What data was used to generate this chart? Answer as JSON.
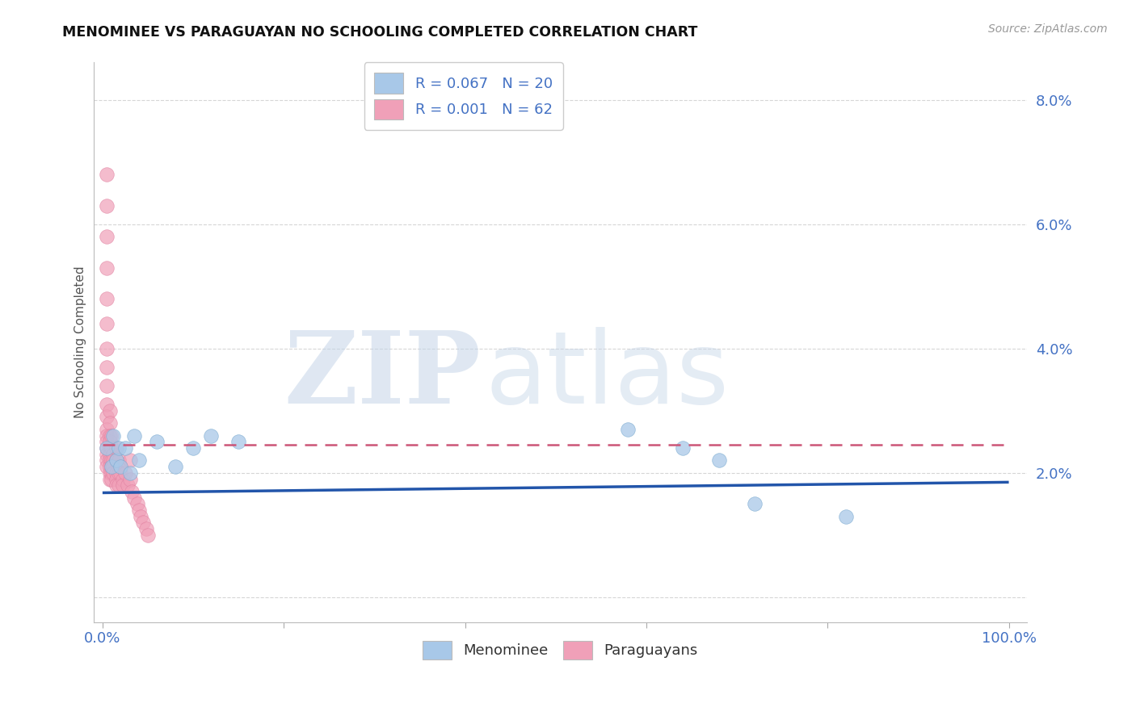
{
  "title": "MENOMINEE VS PARAGUAYAN NO SCHOOLING COMPLETED CORRELATION CHART",
  "source": "Source: ZipAtlas.com",
  "ylabel": "No Schooling Completed",
  "xlim": [
    -0.01,
    1.02
  ],
  "ylim": [
    -0.004,
    0.086
  ],
  "yticks": [
    0.0,
    0.02,
    0.04,
    0.06,
    0.08
  ],
  "ytick_labels": [
    "",
    "2.0%",
    "4.0%",
    "6.0%",
    "8.0%"
  ],
  "xtick_positions": [
    0.0,
    0.2,
    0.4,
    0.6,
    0.8,
    1.0
  ],
  "xtick_labels": [
    "0.0%",
    "",
    "",
    "",
    "",
    "100.0%"
  ],
  "legend_blue_text": "R = 0.067   N = 20",
  "legend_pink_text": "R = 0.001   N = 62",
  "legend_menominee": "Menominee",
  "legend_paraguayans": "Paraguayans",
  "blue_color": "#A8C8E8",
  "pink_color": "#F0A0B8",
  "blue_edge_color": "#7AAAD0",
  "pink_edge_color": "#E080A0",
  "blue_line_color": "#2255AA",
  "pink_line_color": "#CC5577",
  "grid_color": "#CCCCCC",
  "blue_scatter_x": [
    0.005,
    0.01,
    0.012,
    0.015,
    0.018,
    0.02,
    0.025,
    0.03,
    0.035,
    0.04,
    0.06,
    0.08,
    0.1,
    0.12,
    0.15,
    0.58,
    0.64,
    0.68,
    0.72,
    0.82
  ],
  "blue_scatter_y": [
    0.024,
    0.021,
    0.026,
    0.022,
    0.024,
    0.021,
    0.024,
    0.02,
    0.026,
    0.022,
    0.025,
    0.021,
    0.024,
    0.026,
    0.025,
    0.027,
    0.024,
    0.022,
    0.015,
    0.013
  ],
  "pink_scatter_x": [
    0.005,
    0.005,
    0.005,
    0.005,
    0.005,
    0.005,
    0.005,
    0.005,
    0.005,
    0.005,
    0.005,
    0.005,
    0.005,
    0.005,
    0.005,
    0.005,
    0.005,
    0.005,
    0.008,
    0.008,
    0.008,
    0.008,
    0.008,
    0.008,
    0.008,
    0.008,
    0.008,
    0.008,
    0.01,
    0.01,
    0.01,
    0.01,
    0.01,
    0.01,
    0.012,
    0.012,
    0.012,
    0.012,
    0.015,
    0.015,
    0.015,
    0.015,
    0.015,
    0.018,
    0.018,
    0.018,
    0.02,
    0.02,
    0.022,
    0.022,
    0.025,
    0.028,
    0.03,
    0.03,
    0.032,
    0.035,
    0.038,
    0.04,
    0.042,
    0.045,
    0.048,
    0.05
  ],
  "pink_scatter_y": [
    0.068,
    0.063,
    0.058,
    0.053,
    0.048,
    0.044,
    0.04,
    0.037,
    0.034,
    0.031,
    0.029,
    0.027,
    0.026,
    0.025,
    0.024,
    0.023,
    0.022,
    0.021,
    0.03,
    0.028,
    0.026,
    0.025,
    0.024,
    0.023,
    0.022,
    0.021,
    0.02,
    0.019,
    0.026,
    0.024,
    0.022,
    0.021,
    0.02,
    0.019,
    0.023,
    0.022,
    0.021,
    0.02,
    0.024,
    0.022,
    0.02,
    0.019,
    0.018,
    0.022,
    0.02,
    0.018,
    0.021,
    0.02,
    0.019,
    0.018,
    0.02,
    0.018,
    0.022,
    0.019,
    0.017,
    0.016,
    0.015,
    0.014,
    0.013,
    0.012,
    0.011,
    0.01
  ],
  "blue_trend_x": [
    0.0,
    1.0
  ],
  "blue_trend_y": [
    0.0168,
    0.0185
  ],
  "pink_trend_x": [
    0.0,
    1.0
  ],
  "pink_trend_y": [
    0.0245,
    0.0245
  ],
  "watermark_zip": "ZIP",
  "watermark_atlas": "atlas",
  "bg_color": "#FFFFFF"
}
